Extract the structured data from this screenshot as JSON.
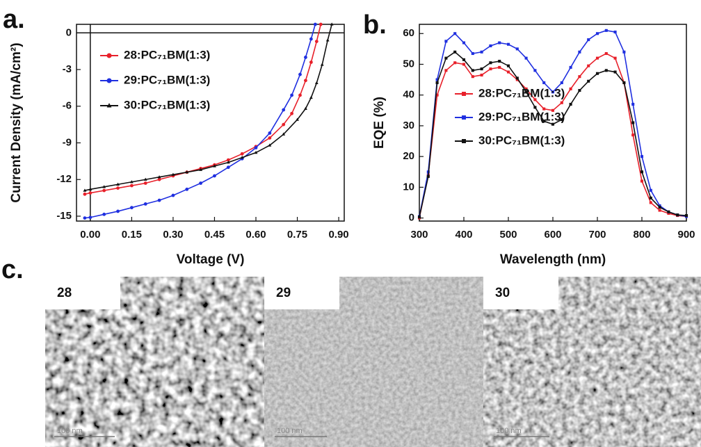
{
  "chart_data": [
    {
      "type": "line",
      "panel_label": "a.",
      "x_label": "Voltage (V)",
      "y_label": "Current Density (mA/cm²)",
      "xlim": [
        -0.05,
        0.92
      ],
      "ylim": [
        -15.4,
        0.7
      ],
      "xticks": [
        {
          "value": 0,
          "label": "0.00"
        },
        0.15,
        {
          "value": 0.3,
          "label": "0.30"
        },
        0.45,
        {
          "value": 0.6,
          "label": "0.60"
        },
        0.75,
        {
          "value": 0.9,
          "label": "0.90"
        }
      ],
      "yticks": [
        0,
        -3,
        -6,
        -9,
        -12,
        -15
      ],
      "zero_lines": true,
      "legend": "upper left",
      "series": [
        {
          "name": "28:PC₇₁BM(1:3)",
          "color": "#e8202a",
          "marker": "circle",
          "x": [
            -0.02,
            0,
            0.05,
            0.1,
            0.15,
            0.2,
            0.25,
            0.3,
            0.35,
            0.4,
            0.45,
            0.5,
            0.55,
            0.6,
            0.65,
            0.7,
            0.73,
            0.76,
            0.78,
            0.8,
            0.82,
            0.835
          ],
          "values": [
            -13.2,
            -13.1,
            -12.9,
            -12.7,
            -12.5,
            -12.3,
            -12.0,
            -11.7,
            -11.4,
            -11.1,
            -10.8,
            -10.4,
            -9.9,
            -9.3,
            -8.6,
            -7.5,
            -6.6,
            -5.1,
            -3.9,
            -2.4,
            -0.7,
            0.7
          ]
        },
        {
          "name": "29:PC₇₁BM(1:3)",
          "color": "#1f2fe0",
          "marker": "circle",
          "x": [
            -0.02,
            0,
            0.05,
            0.1,
            0.15,
            0.2,
            0.25,
            0.3,
            0.35,
            0.4,
            0.45,
            0.5,
            0.55,
            0.6,
            0.65,
            0.7,
            0.73,
            0.76,
            0.78,
            0.8,
            0.815
          ],
          "values": [
            -15.15,
            -15.1,
            -14.85,
            -14.6,
            -14.3,
            -14.0,
            -13.7,
            -13.3,
            -12.8,
            -12.3,
            -11.7,
            -11.0,
            -10.3,
            -9.4,
            -8.2,
            -6.3,
            -5.1,
            -3.4,
            -2.0,
            -0.5,
            0.7
          ]
        },
        {
          "name": "30:PC₇₁BM(1:3)",
          "color": "#111111",
          "marker": "triangle",
          "x": [
            -0.02,
            0,
            0.05,
            0.1,
            0.15,
            0.2,
            0.25,
            0.3,
            0.35,
            0.4,
            0.45,
            0.5,
            0.55,
            0.6,
            0.65,
            0.7,
            0.75,
            0.78,
            0.8,
            0.82,
            0.84,
            0.86,
            0.875
          ],
          "values": [
            -12.9,
            -12.8,
            -12.6,
            -12.4,
            -12.2,
            -12.0,
            -11.8,
            -11.6,
            -11.4,
            -11.2,
            -10.9,
            -10.6,
            -10.2,
            -9.8,
            -9.2,
            -8.3,
            -7.1,
            -6.2,
            -5.3,
            -4.1,
            -2.6,
            -0.6,
            0.7
          ]
        }
      ]
    },
    {
      "type": "line",
      "panel_label": "b.",
      "x_label": "Wavelength (nm)",
      "y_label": "EQE (%)",
      "xlim": [
        300,
        900
      ],
      "ylim": [
        -1,
        63
      ],
      "xticks": [
        300,
        400,
        500,
        600,
        700,
        800,
        900
      ],
      "yticks": [
        0,
        10,
        20,
        30,
        40,
        50,
        60
      ],
      "legend": "lower center",
      "x": [
        300,
        320,
        340,
        360,
        380,
        400,
        420,
        440,
        460,
        480,
        500,
        520,
        540,
        560,
        580,
        600,
        620,
        640,
        660,
        680,
        700,
        720,
        740,
        760,
        780,
        800,
        820,
        840,
        860,
        880,
        900
      ],
      "series": [
        {
          "name": "28:PC₇₁BM(1:3)",
          "color": "#e8202a",
          "marker": "square",
          "values": [
            0,
            14,
            40,
            48,
            50.5,
            50,
            46,
            46.5,
            48.5,
            49,
            47.5,
            45,
            42,
            38.5,
            35.5,
            35,
            37.5,
            42,
            46,
            49.5,
            52,
            53.5,
            52,
            44,
            27,
            12,
            5,
            2.5,
            1.5,
            0.8,
            0.5
          ]
        },
        {
          "name": "29:PC₇₁BM(1:3)",
          "color": "#1f2fe0",
          "marker": "square",
          "values": [
            0.5,
            15,
            45,
            57.5,
            60,
            57,
            53.5,
            54,
            56,
            57,
            56.5,
            55,
            52,
            48,
            44,
            41,
            44,
            49,
            54,
            58,
            60,
            61,
            60.5,
            54,
            37,
            20,
            9,
            4,
            2,
            1,
            0.5
          ]
        },
        {
          "name": "30:PC₇₁BM(1:3)",
          "color": "#111111",
          "marker": "square",
          "values": [
            0.3,
            13.5,
            44,
            52,
            54,
            51.5,
            48,
            48.5,
            50.5,
            51,
            49.5,
            45.5,
            41,
            36,
            31.5,
            30.5,
            32,
            37,
            41.5,
            44.5,
            47,
            48,
            47.5,
            44,
            31,
            15,
            6.5,
            3.5,
            2,
            1,
            0.8
          ]
        }
      ]
    }
  ],
  "images": {
    "panel_label": "c.",
    "items": [
      {
        "label": "28",
        "scale_bar": "100 nm"
      },
      {
        "label": "29",
        "scale_bar": "100 nm"
      },
      {
        "label": "30",
        "scale_bar": "100 nm"
      }
    ]
  }
}
